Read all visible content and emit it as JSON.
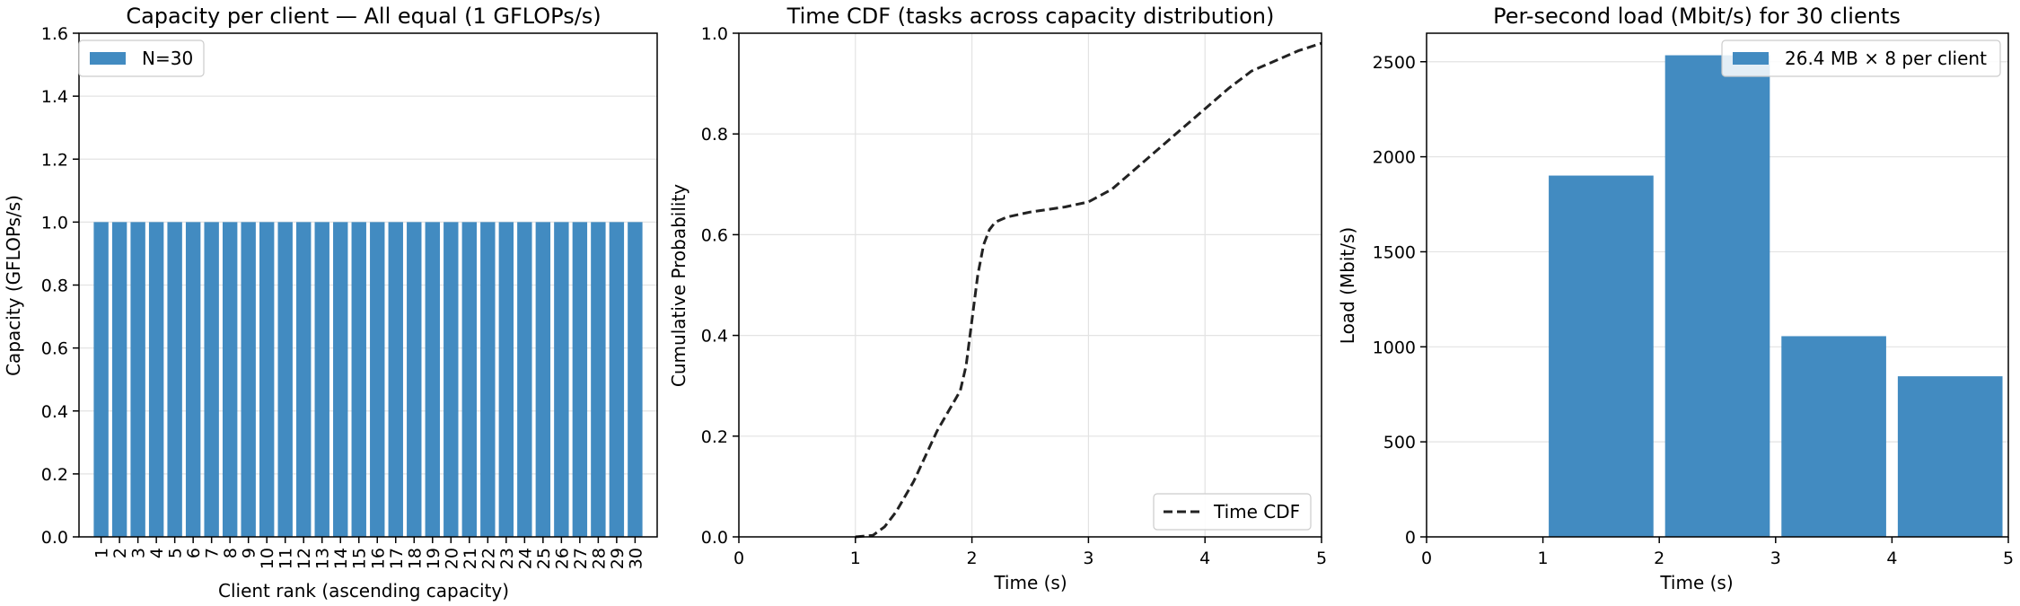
{
  "chart_data": [
    {
      "type": "bar",
      "title": "Capacity per client — All equal (1 GFLOPs/s)",
      "xlabel": "Client rank (ascending capacity)",
      "ylabel": "Capacity (GFLOPs/s)",
      "categories": [
        "1",
        "2",
        "3",
        "4",
        "5",
        "6",
        "7",
        "8",
        "9",
        "10",
        "11",
        "12",
        "13",
        "14",
        "15",
        "16",
        "17",
        "18",
        "19",
        "20",
        "21",
        "22",
        "23",
        "24",
        "25",
        "26",
        "27",
        "28",
        "29",
        "30"
      ],
      "series": [
        {
          "name": "N=30",
          "values": [
            1,
            1,
            1,
            1,
            1,
            1,
            1,
            1,
            1,
            1,
            1,
            1,
            1,
            1,
            1,
            1,
            1,
            1,
            1,
            1,
            1,
            1,
            1,
            1,
            1,
            1,
            1,
            1,
            1,
            1
          ]
        }
      ],
      "ylim": [
        0,
        1.6
      ],
      "yticks": [
        "0.0",
        "0.2",
        "0.4",
        "0.6",
        "0.8",
        "1.0",
        "1.2",
        "1.4",
        "1.6"
      ],
      "color": "#428bc1",
      "grid": "y",
      "legend_position": "top-left"
    },
    {
      "type": "line",
      "title": "Time CDF (tasks across capacity distribution)",
      "xlabel": "Time (s)",
      "ylabel": "Cumulative Probability",
      "series": [
        {
          "name": "Time CDF",
          "style": "dashed",
          "color": "#222222",
          "x": [
            1.0,
            1.15,
            1.25,
            1.35,
            1.5,
            1.6,
            1.7,
            1.8,
            1.9,
            1.95,
            2.0,
            2.05,
            2.1,
            2.15,
            2.2,
            2.3,
            2.5,
            2.8,
            3.0,
            3.2,
            3.4,
            3.6,
            3.8,
            4.0,
            4.2,
            4.4,
            4.6,
            4.8,
            5.0
          ],
          "y": [
            0.0,
            0.003,
            0.02,
            0.05,
            0.11,
            0.16,
            0.21,
            0.25,
            0.29,
            0.34,
            0.43,
            0.52,
            0.58,
            0.61,
            0.625,
            0.635,
            0.645,
            0.655,
            0.665,
            0.69,
            0.73,
            0.77,
            0.81,
            0.85,
            0.89,
            0.925,
            0.945,
            0.965,
            0.98
          ]
        }
      ],
      "xlim": [
        0,
        5
      ],
      "ylim": [
        0,
        1.0
      ],
      "xticks": [
        "0",
        "1",
        "2",
        "3",
        "4",
        "5"
      ],
      "yticks": [
        "0.0",
        "0.2",
        "0.4",
        "0.6",
        "0.8",
        "1.0"
      ],
      "grid": "both",
      "legend_position": "bottom-right"
    },
    {
      "type": "bar",
      "title": "Per-second load (Mbit/s) for 30 clients",
      "xlabel": "Time (s)",
      "ylabel": "Load (Mbit/s)",
      "bins": [
        [
          0,
          1
        ],
        [
          1,
          2
        ],
        [
          2,
          3
        ],
        [
          3,
          4
        ],
        [
          4,
          5
        ]
      ],
      "series": [
        {
          "name": "26.4 MB × 8 per client",
          "values": [
            0,
            1901,
            2534,
            1056,
            845
          ]
        }
      ],
      "xlim": [
        0,
        5
      ],
      "ylim": [
        0,
        2650
      ],
      "xticks": [
        "0",
        "1",
        "2",
        "3",
        "4",
        "5"
      ],
      "yticks": [
        "0",
        "500",
        "1000",
        "1500",
        "2000",
        "2500"
      ],
      "color": "#428bc1",
      "grid": "y",
      "legend_position": "top-right"
    }
  ]
}
